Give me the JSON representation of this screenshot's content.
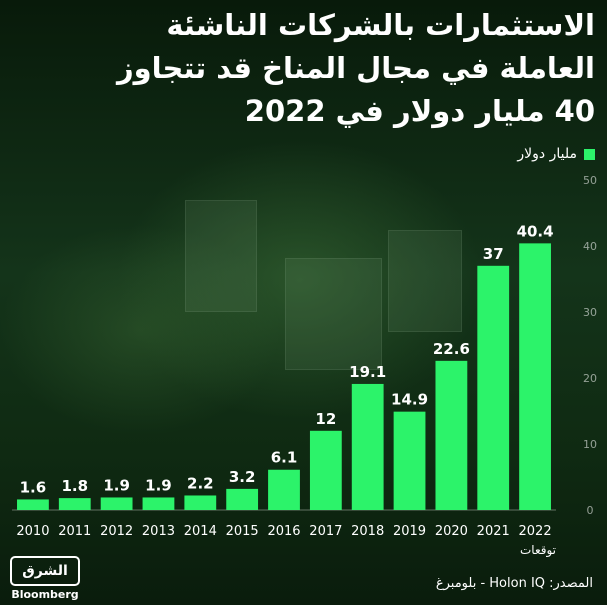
{
  "title_lines": [
    "الاستثمارات بالشركات الناشئة",
    "العاملة في مجال المناخ قد تتجاوز",
    "40 مليار دولار في 2022"
  ],
  "legend_label": "مليار دولار",
  "source": "المصدر: Holon IQ - بلومبرغ",
  "logo": {
    "top": "الشرق",
    "bottom": "Bloomberg"
  },
  "colors": {
    "bar": "#2cf36a",
    "background": "#0d2410",
    "text": "#ffffff"
  },
  "chart_data": {
    "type": "bar",
    "categories": [
      "2010",
      "2011",
      "2012",
      "2013",
      "2014",
      "2015",
      "2016",
      "2017",
      "2018",
      "2019",
      "2020",
      "2021",
      "2022"
    ],
    "values": [
      1.6,
      1.8,
      1.9,
      1.9,
      2.2,
      3.2,
      6.1,
      12,
      19.1,
      14.9,
      22.6,
      37,
      40.4
    ],
    "value_labels": [
      "1.6",
      "1.8",
      "1.9",
      "1.9",
      "2.2",
      "3.2",
      "6.1",
      "12",
      "19.1",
      "14.9",
      "22.6",
      "37",
      "40.4"
    ],
    "y_ticks": [
      "0",
      "10",
      "20",
      "30",
      "40",
      "50"
    ],
    "ylim": [
      0,
      50
    ],
    "y_axis_position": "right",
    "grid": false,
    "legend_position": "top-right",
    "annotations": [
      {
        "category": "2022",
        "text": "توقعات"
      }
    ]
  }
}
